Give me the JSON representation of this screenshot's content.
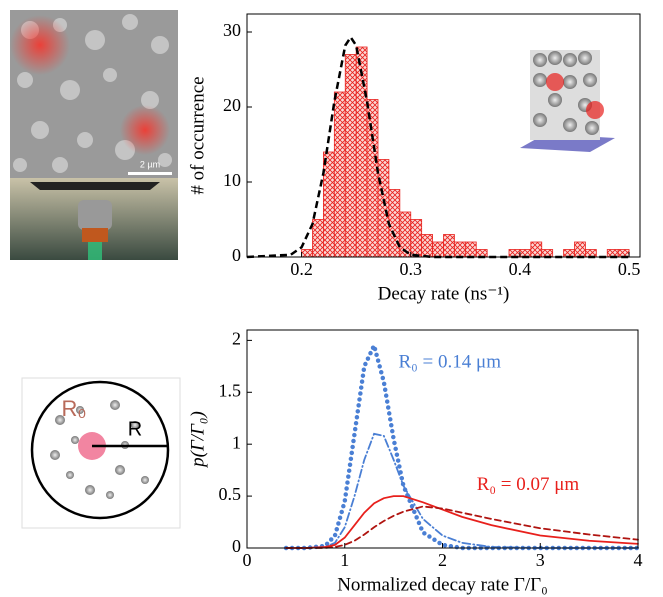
{
  "figure": {
    "scale_bar": "2 µm",
    "diagram_labels": [
      "R₀",
      "R"
    ]
  },
  "chart_data": [
    {
      "type": "histogram",
      "xlabel": "Decay rate (ns⁻¹)",
      "ylabel": "# of occurrence",
      "bins": [
        0.2,
        0.21,
        0.22,
        0.23,
        0.24,
        0.25,
        0.26,
        0.27,
        0.28,
        0.29,
        0.3,
        0.31,
        0.32,
        0.33,
        0.34,
        0.35,
        0.36,
        0.37,
        0.38,
        0.39,
        0.4,
        0.41,
        0.42,
        0.43,
        0.44,
        0.45,
        0.46,
        0.47,
        0.48,
        0.49,
        0.5
      ],
      "values": [
        1,
        5,
        14,
        22,
        27,
        28,
        21,
        13,
        9,
        6,
        5,
        3,
        2,
        3,
        2,
        2,
        1,
        0,
        0,
        1,
        1,
        2,
        1,
        0,
        1,
        2,
        1,
        0,
        1,
        1
      ],
      "color": "#e8201c",
      "fit": {
        "x": [
          0.15,
          0.19,
          0.2,
          0.21,
          0.22,
          0.23,
          0.24,
          0.245,
          0.25,
          0.26,
          0.27,
          0.28,
          0.29,
          0.3,
          0.32,
          0.5
        ],
        "values": [
          0,
          0.3,
          1.3,
          4.4,
          11.2,
          20.7,
          28.2,
          29.3,
          28.2,
          20.7,
          11.2,
          4.4,
          1.3,
          0.3,
          0,
          0
        ],
        "color": "#000000"
      },
      "xlim": [
        0.15,
        0.51
      ],
      "ylim": [
        0,
        32.4
      ],
      "xticks": [
        0.2,
        0.3,
        0.4,
        0.5
      ],
      "yticks": [
        0,
        10,
        20,
        30
      ]
    },
    {
      "type": "line",
      "xlabel": "Normalized decay rate  Γ/Γ₀",
      "ylabel": "p(Γ/Γ₀)",
      "x": [
        0.4,
        0.6,
        0.8,
        0.9,
        1.0,
        1.1,
        1.2,
        1.3,
        1.4,
        1.5,
        1.6,
        1.8,
        2.0,
        2.2,
        2.5,
        3.0,
        3.5,
        4.0
      ],
      "series": [
        {
          "color": "#4a7fd4",
          "style": "dotted",
          "values": [
            0,
            0,
            0.02,
            0.12,
            0.45,
            1.1,
            1.75,
            1.95,
            1.6,
            1.05,
            0.6,
            0.15,
            0.03,
            0,
            0,
            0,
            0,
            0
          ]
        },
        {
          "color": "#4a7fd4",
          "style": "dashdot",
          "values": [
            0,
            0,
            0.01,
            0.05,
            0.2,
            0.5,
            0.85,
            1.1,
            1.08,
            0.85,
            0.6,
            0.28,
            0.12,
            0.05,
            0.01,
            0,
            0,
            0
          ]
        },
        {
          "color": "#e8201c",
          "style": "solid",
          "values": [
            0,
            0,
            0.01,
            0.03,
            0.1,
            0.22,
            0.34,
            0.43,
            0.48,
            0.5,
            0.5,
            0.44,
            0.37,
            0.3,
            0.22,
            0.12,
            0.07,
            0.04
          ]
        },
        {
          "color": "#b01410",
          "style": "dashed",
          "values": [
            0,
            0,
            0,
            0.01,
            0.03,
            0.07,
            0.13,
            0.2,
            0.26,
            0.31,
            0.35,
            0.4,
            0.38,
            0.34,
            0.28,
            0.19,
            0.13,
            0.08
          ]
        }
      ],
      "annotations": [
        {
          "text": "R₀ = 0.14 μm",
          "x": 1.55,
          "y": 1.78,
          "color": "#4a7fd4"
        },
        {
          "text": "R₀ = 0.07 μm",
          "x": 2.35,
          "y": 0.6,
          "color": "#e8201c"
        }
      ],
      "xlim": [
        0,
        4
      ],
      "ylim": [
        0,
        2.1
      ],
      "xticks": [
        0,
        1,
        2,
        3,
        4
      ],
      "yticks": [
        0,
        0.5,
        1,
        1.5,
        2
      ]
    }
  ]
}
